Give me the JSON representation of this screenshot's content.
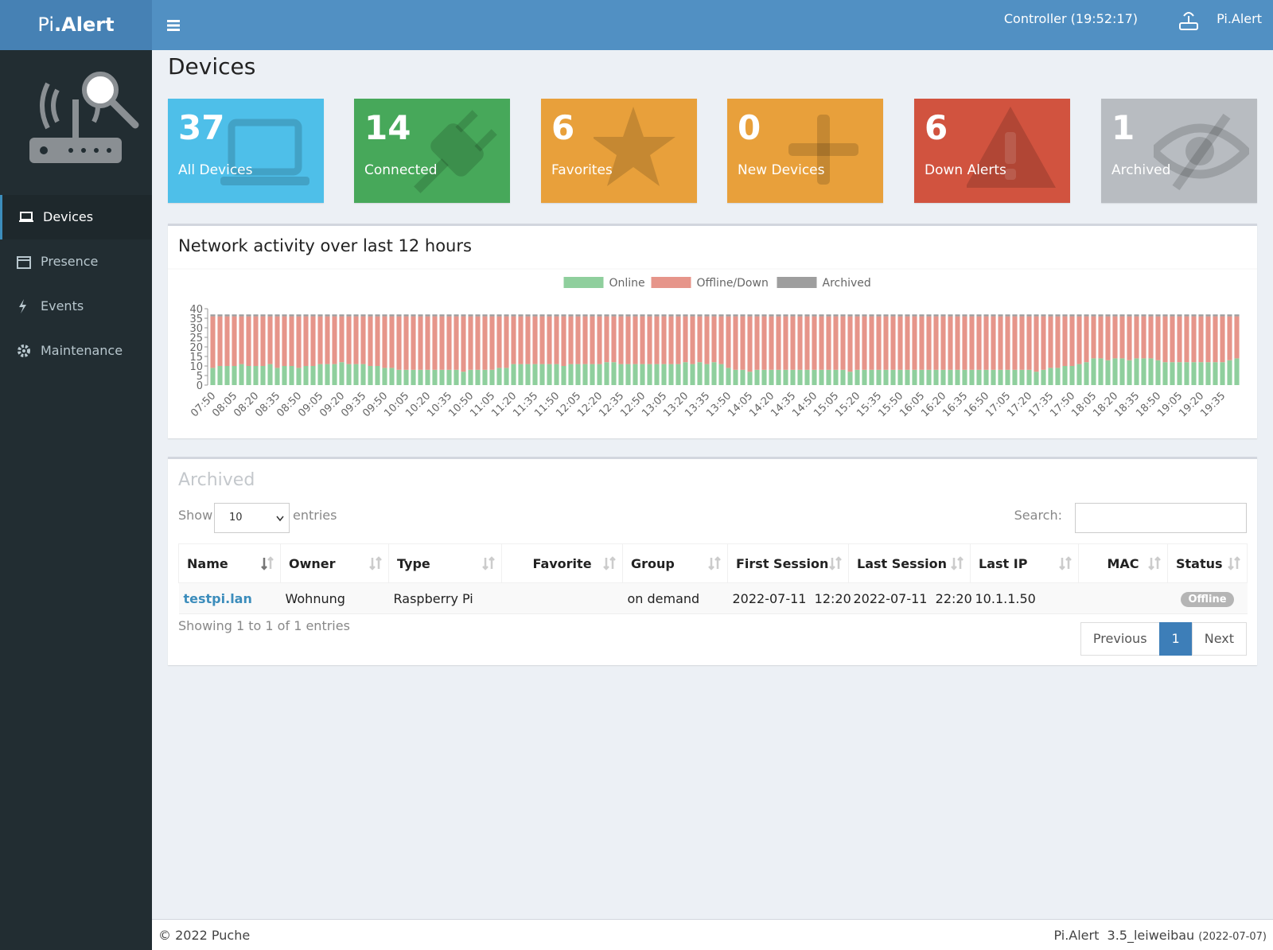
{
  "header": {
    "brand_light": "Pi",
    "brand_bold": ".Alert",
    "controller": "Controller (19:52:17)",
    "user": "Pi.Alert"
  },
  "sidebar": {
    "items": [
      "Devices",
      "Presence",
      "Events",
      "Maintenance"
    ],
    "active": 0
  },
  "page_title": "Devices",
  "info_boxes": [
    {
      "value": 37,
      "label": "All Devices",
      "color": "#4ebfe9"
    },
    {
      "value": 14,
      "label": "Connected",
      "color": "#47a85a"
    },
    {
      "value": 6,
      "label": "Favorites",
      "color": "#e8a03b"
    },
    {
      "value": 0,
      "label": "New Devices",
      "color": "#e8a03b"
    },
    {
      "value": 6,
      "label": "Down Alerts",
      "color": "#d1533f"
    },
    {
      "value": 1,
      "label": "Archived",
      "color": "#b8bcc1"
    }
  ],
  "chart_data": {
    "type": "bar",
    "stacked": true,
    "title": "Network activity over last 12 hours",
    "categories": [
      "07:50",
      null,
      null,
      "08:05",
      null,
      null,
      "08:20",
      null,
      null,
      "08:35",
      null,
      null,
      "08:50",
      null,
      null,
      "09:05",
      null,
      null,
      "09:20",
      null,
      null,
      "09:35",
      null,
      null,
      "09:50",
      null,
      null,
      "10:05",
      null,
      null,
      "10:20",
      null,
      null,
      "10:35",
      null,
      null,
      "10:50",
      null,
      null,
      "11:05",
      null,
      null,
      "11:20",
      null,
      null,
      "11:35",
      null,
      null,
      "11:50",
      null,
      null,
      "12:05",
      null,
      null,
      "12:20",
      null,
      null,
      "12:35",
      null,
      null,
      "12:50",
      null,
      null,
      "13:05",
      null,
      null,
      "13:20",
      null,
      null,
      "13:35",
      null,
      null,
      "13:50",
      null,
      null,
      "14:05",
      null,
      null,
      "14:20",
      null,
      null,
      "14:35",
      null,
      null,
      "14:50",
      null,
      null,
      "15:05",
      null,
      null,
      "15:20",
      null,
      null,
      "15:35",
      null,
      null,
      "15:50",
      null,
      null,
      "16:05",
      null,
      null,
      "16:20",
      null,
      null,
      "16:35",
      null,
      null,
      "16:50",
      null,
      null,
      "17:05",
      null,
      null,
      "17:20",
      null,
      null,
      "17:35",
      null,
      null,
      "17:50",
      null,
      null,
      "18:05",
      null,
      null,
      "18:20",
      null,
      null,
      "18:35",
      null,
      null,
      "18:50",
      null,
      null,
      "19:05",
      null,
      null,
      "19:20",
      null,
      null,
      "19:35",
      null,
      null
    ],
    "series": [
      {
        "name": "Online",
        "color": "#8fcf9d",
        "values": [
          9,
          10,
          10,
          10,
          11,
          10,
          10,
          10,
          11,
          9,
          10,
          10,
          9,
          10,
          10,
          11,
          11,
          11,
          12,
          11,
          11,
          11,
          10,
          10,
          9,
          9,
          8,
          8,
          8,
          8,
          8,
          8,
          8,
          8,
          8,
          7,
          8,
          8,
          8,
          8,
          9,
          9,
          11,
          11,
          11,
          11,
          11,
          11,
          11,
          10,
          11,
          11,
          11,
          11,
          11,
          12,
          12,
          11,
          11,
          11,
          11,
          11,
          11,
          11,
          11,
          11,
          12,
          11,
          12,
          11,
          12,
          11,
          9,
          8,
          8,
          7,
          8,
          8,
          8,
          8,
          8,
          8,
          8,
          8,
          8,
          8,
          8,
          8,
          8,
          7,
          8,
          8,
          8,
          8,
          8,
          8,
          8,
          8,
          8,
          8,
          8,
          8,
          8,
          8,
          8,
          8,
          8,
          8,
          8,
          8,
          8,
          8,
          8,
          8,
          8,
          7,
          8,
          9,
          9,
          10,
          10,
          11,
          12,
          14,
          14,
          13,
          14,
          14,
          13,
          14,
          14,
          14,
          13,
          12,
          12,
          12,
          12,
          12,
          12,
          12,
          12,
          12,
          13,
          14
        ]
      },
      {
        "name": "Offline/Down",
        "color": "#e6958a",
        "values": [
          27,
          26,
          26,
          26,
          25,
          26,
          26,
          26,
          25,
          27,
          26,
          26,
          27,
          26,
          26,
          25,
          25,
          25,
          24,
          25,
          25,
          25,
          26,
          26,
          27,
          27,
          28,
          28,
          28,
          28,
          28,
          28,
          28,
          28,
          28,
          29,
          28,
          28,
          28,
          28,
          27,
          27,
          25,
          25,
          25,
          25,
          25,
          25,
          25,
          26,
          25,
          25,
          25,
          25,
          25,
          24,
          24,
          25,
          25,
          25,
          25,
          25,
          25,
          25,
          25,
          25,
          24,
          25,
          24,
          25,
          24,
          25,
          27,
          28,
          28,
          29,
          28,
          28,
          28,
          28,
          28,
          28,
          28,
          28,
          28,
          28,
          28,
          28,
          28,
          29,
          28,
          28,
          28,
          28,
          28,
          28,
          28,
          28,
          28,
          28,
          28,
          28,
          28,
          28,
          28,
          28,
          28,
          28,
          28,
          28,
          28,
          28,
          28,
          28,
          28,
          29,
          28,
          27,
          27,
          26,
          26,
          25,
          24,
          22,
          22,
          23,
          22,
          22,
          23,
          22,
          22,
          22,
          23,
          24,
          24,
          24,
          24,
          24,
          24,
          24,
          24,
          24,
          23,
          22
        ]
      },
      {
        "name": "Archived",
        "color": "#9e9e9e",
        "values": [
          1,
          1,
          1,
          1,
          1,
          1,
          1,
          1,
          1,
          1,
          1,
          1,
          1,
          1,
          1,
          1,
          1,
          1,
          1,
          1,
          1,
          1,
          1,
          1,
          1,
          1,
          1,
          1,
          1,
          1,
          1,
          1,
          1,
          1,
          1,
          1,
          1,
          1,
          1,
          1,
          1,
          1,
          1,
          1,
          1,
          1,
          1,
          1,
          1,
          1,
          1,
          1,
          1,
          1,
          1,
          1,
          1,
          1,
          1,
          1,
          1,
          1,
          1,
          1,
          1,
          1,
          1,
          1,
          1,
          1,
          1,
          1,
          1,
          1,
          1,
          1,
          1,
          1,
          1,
          1,
          1,
          1,
          1,
          1,
          1,
          1,
          1,
          1,
          1,
          1,
          1,
          1,
          1,
          1,
          1,
          1,
          1,
          1,
          1,
          1,
          1,
          1,
          1,
          1,
          1,
          1,
          1,
          1,
          1,
          1,
          1,
          1,
          1,
          1,
          1,
          1,
          1,
          1,
          1,
          1,
          1,
          1,
          1,
          1,
          1,
          1,
          1,
          1,
          1,
          1,
          1,
          1,
          1,
          1,
          1,
          1,
          1,
          1,
          1,
          1,
          1,
          1,
          1,
          1
        ]
      }
    ],
    "ylim": [
      0,
      40
    ],
    "yticks": [
      0,
      5,
      10,
      15,
      20,
      25,
      30,
      35,
      40
    ],
    "legend": "top"
  },
  "table": {
    "title": "Archived",
    "show": "Show",
    "page_length": "10",
    "entries": "entries",
    "search": "Search:",
    "columns": [
      "Name",
      "Owner",
      "Type",
      "Favorite",
      "Group",
      "First Session",
      "Last Session",
      "Last IP",
      "MAC",
      "Status"
    ],
    "rows": [
      [
        "testpi.lan",
        "Wohnung",
        "Raspberry Pi",
        null,
        "on demand",
        "2022-07-11  12:20",
        "2022-07-11  22:20",
        "10.1.1.50",
        null,
        "Offline"
      ]
    ],
    "info": "Showing 1 to 1 of 1 entries",
    "pagination": [
      "Previous",
      "1",
      "Next"
    ]
  },
  "footer": {
    "copyright": "© 2022 Puche",
    "version": "Pi.Alert  3.5_leiweibau",
    "date": "(2022-07-07)"
  }
}
